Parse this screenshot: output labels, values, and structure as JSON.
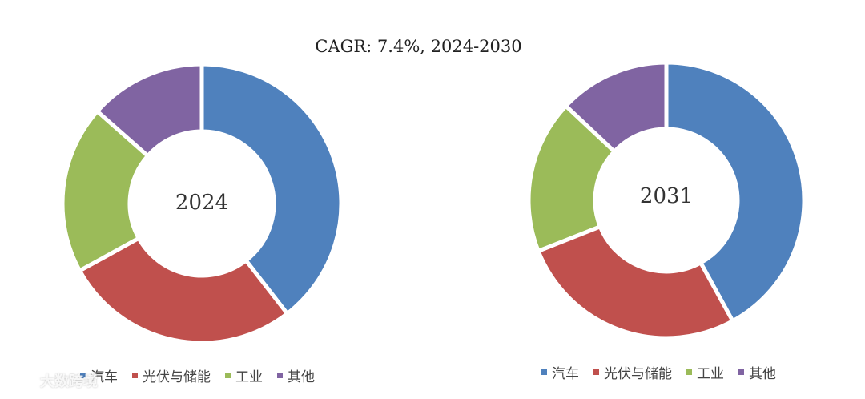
{
  "title": "CAGR:  7.4%, 2024-2030",
  "watermark": "大数跨境",
  "colors": {
    "汽车": "#4f81bd",
    "光伏与储能": "#c0504d",
    "工业": "#9bbb59",
    "其他": "#8064a2"
  },
  "chart_data": [
    {
      "type": "pie",
      "center_label": "2024",
      "categories": [
        "汽车",
        "光伏与储能",
        "工业",
        "其他"
      ],
      "values": [
        39.5,
        27.5,
        19.5,
        13.5
      ],
      "legend": [
        "汽车",
        "光伏与储能",
        "工业",
        "其他"
      ]
    },
    {
      "type": "pie",
      "center_label": "2031",
      "categories": [
        "汽车",
        "光伏与储能",
        "工业",
        "其他"
      ],
      "values": [
        42,
        27,
        18,
        13
      ],
      "legend": [
        "汽车",
        "光伏与储能",
        "工业",
        "其他"
      ]
    }
  ]
}
